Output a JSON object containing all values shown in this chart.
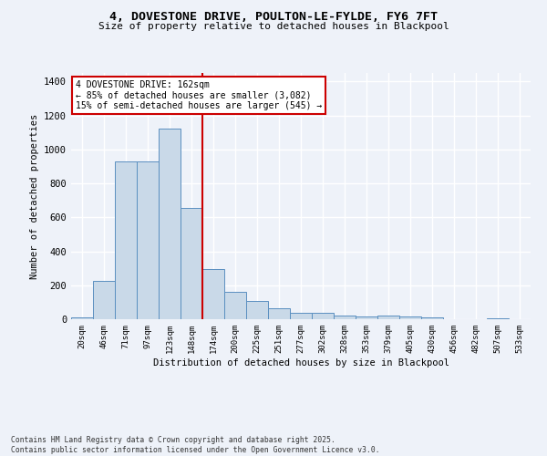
{
  "title_line1": "4, DOVESTONE DRIVE, POULTON-LE-FYLDE, FY6 7FT",
  "title_line2": "Size of property relative to detached houses in Blackpool",
  "xlabel": "Distribution of detached houses by size in Blackpool",
  "ylabel": "Number of detached properties",
  "categories": [
    "20sqm",
    "46sqm",
    "71sqm",
    "97sqm",
    "123sqm",
    "148sqm",
    "174sqm",
    "200sqm",
    "225sqm",
    "251sqm",
    "277sqm",
    "302sqm",
    "328sqm",
    "353sqm",
    "379sqm",
    "405sqm",
    "430sqm",
    "456sqm",
    "482sqm",
    "507sqm",
    "533sqm"
  ],
  "values": [
    12,
    225,
    930,
    930,
    1120,
    655,
    295,
    160,
    105,
    65,
    35,
    35,
    20,
    15,
    20,
    15,
    10,
    0,
    0,
    7,
    0
  ],
  "bar_color": "#c9d9e8",
  "bar_edge_color": "#5a8fc0",
  "red_line_index": 6,
  "red_line_color": "#cc0000",
  "ylim": [
    0,
    1450
  ],
  "yticks": [
    0,
    200,
    400,
    600,
    800,
    1000,
    1200,
    1400
  ],
  "annotation_title": "4 DOVESTONE DRIVE: 162sqm",
  "annotation_line2": "← 85% of detached houses are smaller (3,082)",
  "annotation_line3": "15% of semi-detached houses are larger (545) →",
  "footer_line1": "Contains HM Land Registry data © Crown copyright and database right 2025.",
  "footer_line2": "Contains public sector information licensed under the Open Government Licence v3.0.",
  "background_color": "#eef2f9",
  "grid_color": "#ffffff"
}
